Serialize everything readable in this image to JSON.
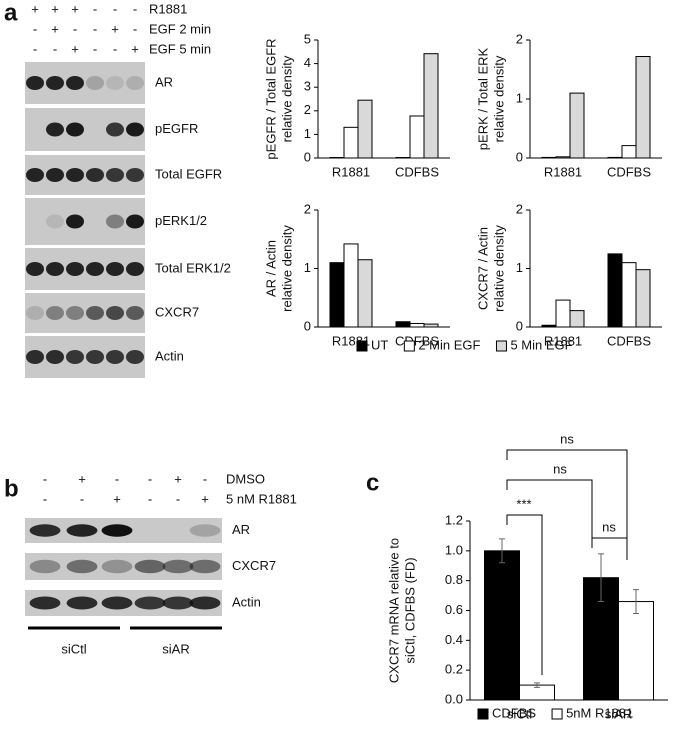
{
  "panel_labels": [
    "a",
    "b",
    "c"
  ],
  "blots_a": {
    "header": [
      {
        "label": "R1881",
        "signs": [
          "+",
          "+",
          "+",
          "-",
          "-",
          "-"
        ]
      },
      {
        "label": "EGF 2 min",
        "signs": [
          "-",
          "+",
          "-",
          "-",
          "+",
          "-"
        ]
      },
      {
        "label": "EGF 5 min",
        "signs": [
          "-",
          "-",
          "+",
          "-",
          "-",
          "+"
        ]
      }
    ],
    "rows": [
      "AR",
      "pEGFR",
      "Total EGFR",
      "pERK1/2",
      "Total ERK1/2",
      "CXCR7",
      "Actin"
    ]
  },
  "blots_b": {
    "header": [
      {
        "label": "DMSO",
        "signs": [
          "-",
          "+",
          "-",
          "-",
          "+",
          "-"
        ]
      },
      {
        "label": "5 nM R1881",
        "signs": [
          "-",
          "-",
          "+",
          "-",
          "-",
          "+"
        ]
      }
    ],
    "rows": [
      "AR",
      "CXCR7",
      "Actin"
    ],
    "groups": [
      "siCtl",
      "siAR"
    ]
  },
  "chart_data": [
    {
      "type": "bar",
      "ylabel": [
        "pEGFR / Total EGFR",
        "relative density"
      ],
      "categories": [
        "R1881",
        "CDFBS"
      ],
      "series": [
        {
          "name": "UT",
          "color": "#000000",
          "values": [
            0.02,
            0.02
          ]
        },
        {
          "name": "2 Min EGF",
          "color": "#ffffff",
          "values": [
            1.3,
            1.78
          ]
        },
        {
          "name": "5 Min EGF",
          "color": "#d9d9d9",
          "values": [
            2.45,
            4.42
          ]
        }
      ],
      "ylim": [
        0,
        5
      ],
      "yticks": [
        0,
        1,
        2,
        3,
        4,
        5
      ]
    },
    {
      "type": "bar",
      "ylabel": [
        "pERK / Total ERK",
        "relative density"
      ],
      "categories": [
        "R1881",
        "CDFBS"
      ],
      "series": [
        {
          "name": "UT",
          "color": "#000000",
          "values": [
            0.01,
            0.01
          ]
        },
        {
          "name": "2 Min EGF",
          "color": "#ffffff",
          "values": [
            0.02,
            0.21
          ]
        },
        {
          "name": "5 Min EGF",
          "color": "#d9d9d9",
          "values": [
            1.1,
            1.72
          ]
        }
      ],
      "ylim": [
        0,
        2
      ],
      "yticks": [
        0,
        1,
        2
      ]
    },
    {
      "type": "bar",
      "ylabel": [
        "AR / Actin",
        "relative density"
      ],
      "categories": [
        "R1881",
        "CDFBS"
      ],
      "series": [
        {
          "name": "UT",
          "color": "#000000",
          "values": [
            1.1,
            0.09
          ]
        },
        {
          "name": "2 Min EGF",
          "color": "#ffffff",
          "values": [
            1.42,
            0.06
          ]
        },
        {
          "name": "5 Min EGF",
          "color": "#d9d9d9",
          "values": [
            1.15,
            0.05
          ]
        }
      ],
      "ylim": [
        0,
        2
      ],
      "yticks": [
        0,
        1,
        2
      ],
      "legend": "bottom"
    },
    {
      "type": "bar",
      "ylabel": [
        "CXCR7 / Actin",
        "relative density"
      ],
      "categories": [
        "R1881",
        "CDFBS"
      ],
      "series": [
        {
          "name": "UT",
          "color": "#000000",
          "values": [
            0.03,
            1.25
          ]
        },
        {
          "name": "2 Min EGF",
          "color": "#ffffff",
          "values": [
            0.46,
            1.1
          ]
        },
        {
          "name": "5 Min EGF",
          "color": "#d9d9d9",
          "values": [
            0.28,
            0.98
          ]
        }
      ],
      "ylim": [
        0,
        2
      ],
      "yticks": [
        0,
        1,
        2
      ]
    },
    {
      "type": "bar",
      "ylabel": [
        "CXCR7 mRNA relative to",
        "siCtl, CDFBS (FD)"
      ],
      "categories": [
        "siCtl",
        "siAR"
      ],
      "series": [
        {
          "name": "CDFBS",
          "color": "#000000",
          "values": [
            1.0,
            0.82
          ],
          "errors": [
            0.08,
            0.16
          ]
        },
        {
          "name": "5nM R1881",
          "color": "#ffffff",
          "values": [
            0.1,
            0.66
          ],
          "errors": [
            0.015,
            0.08
          ]
        }
      ],
      "ylim": [
        0,
        1.2
      ],
      "yticks": [
        {
          "value": 0,
          "label": "0.0"
        },
        {
          "value": 0.2,
          "label": "0.2"
        },
        {
          "value": 0.4,
          "label": "0.4"
        },
        {
          "value": 0.6,
          "label": "0.6"
        },
        {
          "value": 0.8,
          "label": "0.8"
        },
        {
          "value": 1,
          "label": "1.0"
        },
        {
          "value": 1.2,
          "label": "1.2"
        }
      ],
      "annotations": [
        "***",
        "ns",
        "ns",
        "ns"
      ],
      "legend": "bottom"
    }
  ]
}
